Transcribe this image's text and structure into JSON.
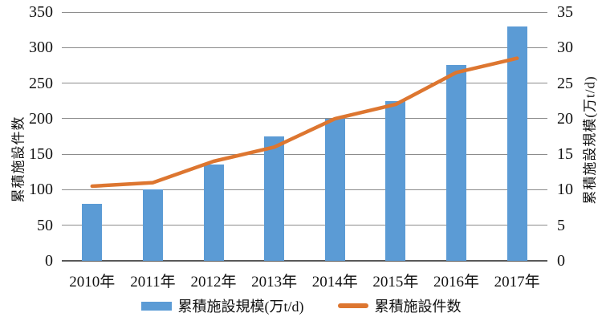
{
  "chart_data": {
    "type": "bar",
    "subtype": "combo-bar-line-dual-axis",
    "categories": [
      "2010年",
      "2011年",
      "2012年",
      "2013年",
      "2014年",
      "2015年",
      "2016年",
      "2017年"
    ],
    "series": [
      {
        "name": "累積施設規模(万t/d)",
        "type": "bar",
        "axis": "right",
        "color": "#5B9BD5",
        "values": [
          8,
          10,
          13.5,
          17.5,
          20,
          22.5,
          27.5,
          33
        ]
      },
      {
        "name": "累積施設件数",
        "type": "line",
        "axis": "left",
        "color": "#DD7630",
        "values": [
          105,
          110,
          140,
          160,
          200,
          220,
          265,
          285
        ]
      }
    ],
    "left_axis": {
      "label": "累積施設件数",
      "min": 0,
      "max": 350,
      "step": 50
    },
    "right_axis": {
      "label": "累積施設規模(万t/d)",
      "min": 0,
      "max": 35,
      "step": 5
    },
    "grid": true,
    "legend_position": "bottom",
    "grid_color": "#8c8c8c",
    "baseline_color": "#595959"
  }
}
